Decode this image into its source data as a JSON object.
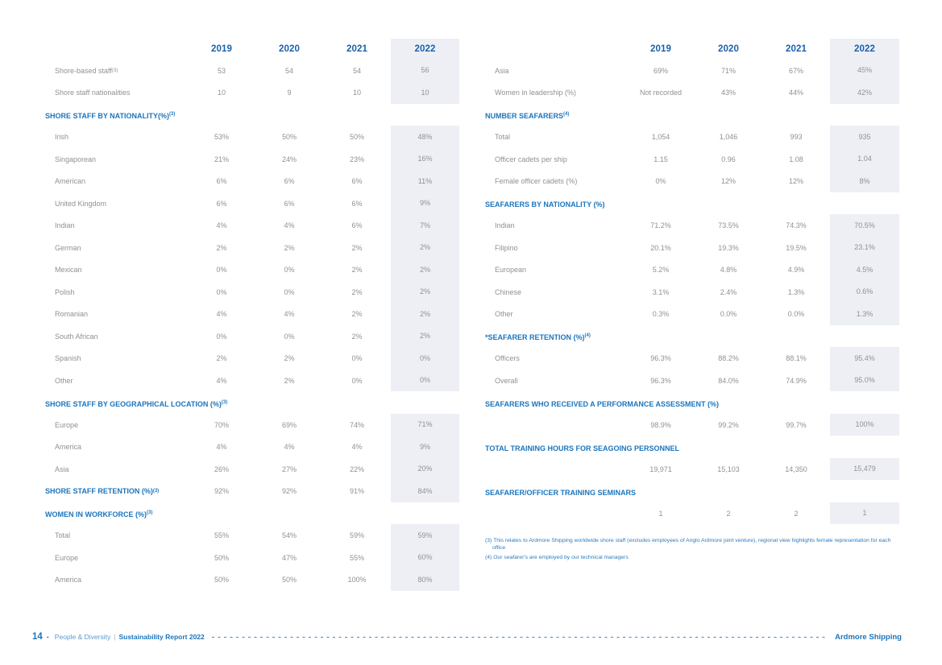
{
  "colors": {
    "accent_blue": "#1C75BC",
    "year_header_blue": "#1A61A9",
    "text_gray": "#8F9194",
    "highlight_column_bg": "#EDEFF5",
    "footnote_blue": "#2B7BBE"
  },
  "left_table": {
    "years": [
      "2019",
      "2020",
      "2021",
      "2022"
    ],
    "rows": [
      {
        "t": "row",
        "label": "Shore-based staff",
        "sup": "(3)",
        "values": [
          "53",
          "54",
          "54",
          "56"
        ]
      },
      {
        "t": "row",
        "label": "Shore staff nationalities",
        "values": [
          "10",
          "9",
          "10",
          "10"
        ]
      },
      {
        "t": "sec",
        "label": "SHORE STAFF BY NATIONALITY(%)",
        "sup": "(3)"
      },
      {
        "t": "row",
        "label": "Irish",
        "values": [
          "53%",
          "50%",
          "50%",
          "48%"
        ]
      },
      {
        "t": "row",
        "label": "Singaporean",
        "values": [
          "21%",
          "24%",
          "23%",
          "16%"
        ]
      },
      {
        "t": "row",
        "label": "American",
        "values": [
          "6%",
          "6%",
          "6%",
          "11%"
        ]
      },
      {
        "t": "row",
        "label": "United Kingdom",
        "values": [
          "6%",
          "6%",
          "6%",
          "9%"
        ]
      },
      {
        "t": "row",
        "label": "Indian",
        "values": [
          "4%",
          "4%",
          "6%",
          "7%"
        ]
      },
      {
        "t": "row",
        "label": "German",
        "values": [
          "2%",
          "2%",
          "2%",
          "2%"
        ]
      },
      {
        "t": "row",
        "label": "Mexican",
        "values": [
          "0%",
          "0%",
          "2%",
          "2%"
        ]
      },
      {
        "t": "row",
        "label": "Polish",
        "values": [
          "0%",
          "0%",
          "2%",
          "2%"
        ]
      },
      {
        "t": "row",
        "label": "Romanian",
        "values": [
          "4%",
          "4%",
          "2%",
          "2%"
        ]
      },
      {
        "t": "row",
        "label": "South African",
        "values": [
          "0%",
          "0%",
          "2%",
          "2%"
        ]
      },
      {
        "t": "row",
        "label": "Spanish",
        "values": [
          "2%",
          "2%",
          "0%",
          "0%"
        ]
      },
      {
        "t": "row",
        "label": "Other",
        "values": [
          "4%",
          "2%",
          "0%",
          "0%"
        ]
      },
      {
        "t": "sec",
        "label": "SHORE STAFF BY GEOGRAPHICAL LOCATION (%)",
        "sup": "(3)"
      },
      {
        "t": "row",
        "label": "Europe",
        "values": [
          "70%",
          "69%",
          "74%",
          "71%"
        ]
      },
      {
        "t": "row",
        "label": "America",
        "values": [
          "4%",
          "4%",
          "4%",
          "9%"
        ]
      },
      {
        "t": "row",
        "label": "Asia",
        "values": [
          "26%",
          "27%",
          "22%",
          "20%"
        ]
      },
      {
        "t": "secrow",
        "label": "SHORE STAFF RETENTION (%)",
        "sup": "(3)",
        "values": [
          "92%",
          "92%",
          "91%",
          "84%"
        ]
      },
      {
        "t": "sec",
        "label": "WOMEN IN WORKFORCE (%)",
        "sup": "(3)"
      },
      {
        "t": "row",
        "label": "Total",
        "values": [
          "55%",
          "54%",
          "59%",
          "59%"
        ]
      },
      {
        "t": "row",
        "label": "Europe",
        "values": [
          "50%",
          "47%",
          "55%",
          "60%"
        ]
      },
      {
        "t": "row",
        "label": "America",
        "values": [
          "50%",
          "50%",
          "100%",
          "80%"
        ]
      }
    ]
  },
  "right_table": {
    "years": [
      "2019",
      "2020",
      "2021",
      "2022"
    ],
    "rows": [
      {
        "t": "row",
        "label": "Asia",
        "values": [
          "69%",
          "71%",
          "67%",
          "45%"
        ]
      },
      {
        "t": "row",
        "label": "Women in leadership (%)",
        "values": [
          "Not recorded",
          "43%",
          "44%",
          "42%"
        ]
      },
      {
        "t": "sec",
        "label": "NUMBER SEAFARERS",
        "sup": "(4)"
      },
      {
        "t": "row",
        "label": "Total",
        "values": [
          "1,054",
          "1,046",
          "993",
          "935"
        ]
      },
      {
        "t": "row",
        "label": "Officer cadets per ship",
        "values": [
          "1.15",
          "0.96",
          "1.08",
          "1.04"
        ]
      },
      {
        "t": "row",
        "label": "Female officer cadets (%)",
        "values": [
          "0%",
          "12%",
          "12%",
          "8%"
        ]
      },
      {
        "t": "sec",
        "label": "SEAFARERS BY NATIONALITY (%)"
      },
      {
        "t": "row",
        "label": "Indian",
        "values": [
          "71.2%",
          "73.5%",
          "74.3%",
          "70.5%"
        ]
      },
      {
        "t": "row",
        "label": "Filipino",
        "values": [
          "20.1%",
          "19.3%",
          "19.5%",
          "23.1%"
        ]
      },
      {
        "t": "row",
        "label": "European",
        "values": [
          "5.2%",
          "4.8%",
          "4.9%",
          "4.5%"
        ]
      },
      {
        "t": "row",
        "label": "Chinese",
        "values": [
          "3.1%",
          "2.4%",
          "1.3%",
          "0.6%"
        ]
      },
      {
        "t": "row",
        "label": "Other",
        "values": [
          "0.3%",
          "0.0%",
          "0.0%",
          "1.3%"
        ]
      },
      {
        "t": "sec",
        "label": "*SEAFARER RETENTION (%)",
        "sup": "(4)"
      },
      {
        "t": "row",
        "label": "Officers",
        "values": [
          "96.3%",
          "88.2%",
          "88.1%",
          "95.4%"
        ]
      },
      {
        "t": "row",
        "label": "Overall",
        "values": [
          "96.3%",
          "84.0%",
          "74.9%",
          "95.0%"
        ]
      },
      {
        "t": "sec",
        "label": "SEAFARERS WHO RECEIVED A PERFORMANCE ASSESSMENT (%)"
      },
      {
        "t": "row",
        "label": "",
        "values": [
          "98.9%",
          "99.2%",
          "99.7%",
          "100%"
        ]
      },
      {
        "t": "sec",
        "label": "TOTAL TRAINING HOURS FOR SEAGOING PERSONNEL"
      },
      {
        "t": "row",
        "label": "",
        "values": [
          "19,971",
          "15,103",
          "14,350",
          "15,479"
        ]
      },
      {
        "t": "sec",
        "label": "SEAFARER/OFFICER TRAINING SEMINARS"
      },
      {
        "t": "row",
        "label": "",
        "values": [
          "1",
          "2",
          "2",
          "1"
        ]
      }
    ]
  },
  "footnotes": [
    "(3) This relates to Ardmore Shipping worldwide shore staff (excludes employees of Anglo Ardmore joint venture), regional view highlights female representation for each office",
    "(4) Our seafarer's are employed by our technical managers"
  ],
  "footer": {
    "page_number": "14",
    "dash": "-",
    "section": "People & Diversity",
    "divider": "|",
    "report": "Sustainability Report 2022",
    "brand": "Ardmore Shipping"
  }
}
